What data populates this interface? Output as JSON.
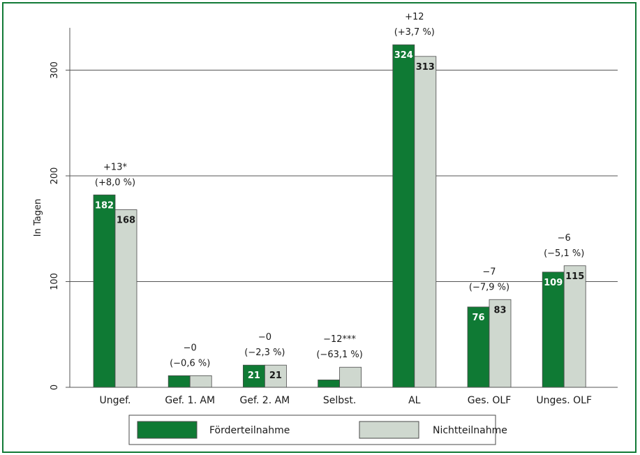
{
  "colors": {
    "frame": "#127a36",
    "foerder": "#0f7a34",
    "nicht": "#cfd8cf",
    "bar_stroke": "#4a4a4a",
    "grid": "#555555"
  },
  "chart_data": {
    "type": "bar",
    "ylabel": "In Tagen",
    "ylim": [
      0,
      340
    ],
    "yticks": [
      0,
      100,
      200,
      300
    ],
    "grid": true,
    "legend_position": "bottom",
    "categories": [
      "Ungef.",
      "Gef. 1. AM",
      "Gef. 2. AM",
      "Selbst.",
      "AL",
      "Ges. OLF",
      "Unges. OLF"
    ],
    "series": [
      {
        "name": "Förderteilnahme",
        "values": [
          182,
          11,
          21,
          7,
          324,
          76,
          109
        ],
        "labels": [
          "182",
          "",
          "21",
          "",
          "324",
          "76",
          "109"
        ]
      },
      {
        "name": "Nichtteilnahme",
        "values": [
          168,
          11,
          21,
          19,
          313,
          83,
          115
        ],
        "labels": [
          "168",
          "",
          "21",
          "",
          "313",
          "83",
          "115"
        ]
      }
    ],
    "annotations": [
      {
        "line1": "+13*",
        "line2": "(+8,0 %)"
      },
      {
        "line1": "−0",
        "line2": "(−0,6 %)"
      },
      {
        "line1": "−0",
        "line2": "(−2,3 %)"
      },
      {
        "line1": "−12***",
        "line2": "(−63,1 %)"
      },
      {
        "line1": "+12",
        "line2": "(+3,7 %)"
      },
      {
        "line1": "−7",
        "line2": "(−7,9 %)"
      },
      {
        "line1": "−6",
        "line2": "(−5,1 %)"
      }
    ]
  }
}
